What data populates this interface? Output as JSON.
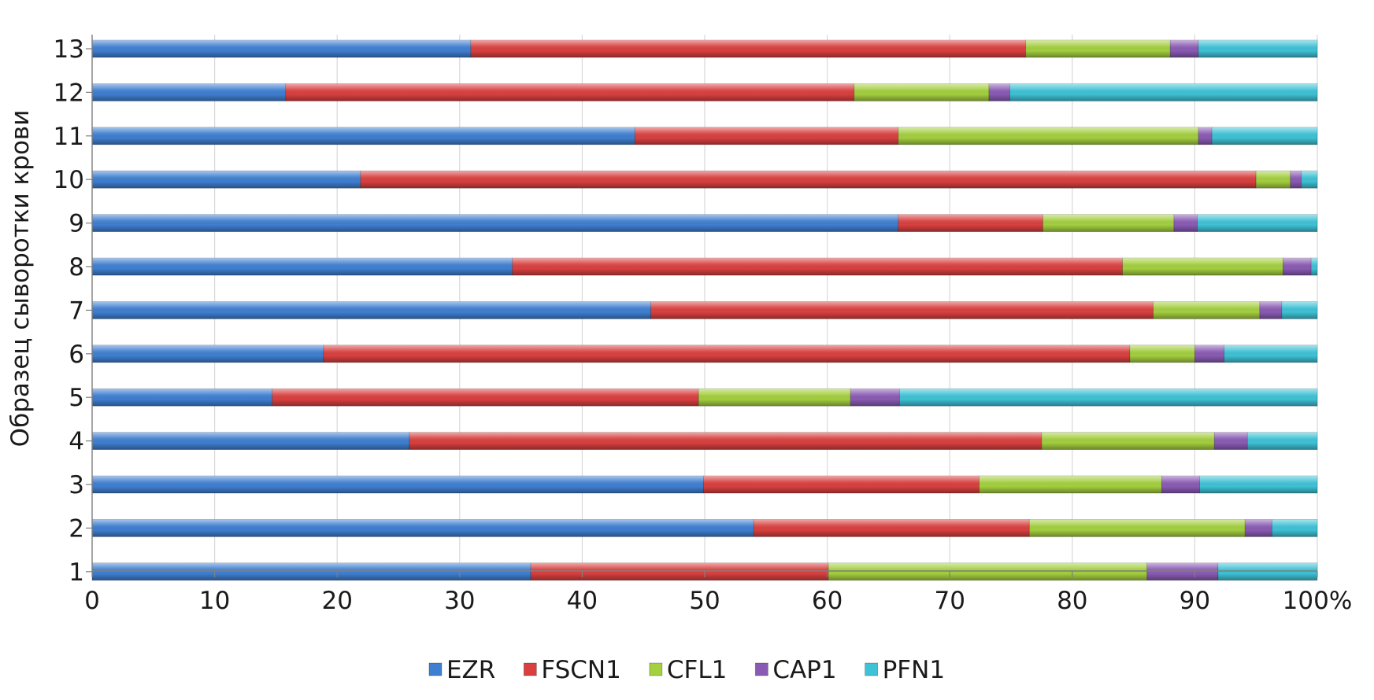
{
  "chart_data": {
    "type": "bar",
    "orientation": "horizontal",
    "stacked": "percent",
    "title": "",
    "xlabel": "",
    "ylabel": "Образец сыворотки крови",
    "xlim": [
      0,
      100
    ],
    "x_ticks": [
      "0",
      "10",
      "20",
      "30",
      "40",
      "50",
      "60",
      "70",
      "80",
      "90",
      "100%"
    ],
    "categories": [
      "1",
      "2",
      "3",
      "4",
      "5",
      "6",
      "7",
      "8",
      "9",
      "10",
      "11",
      "12",
      "13"
    ],
    "series": [
      {
        "name": "EZR",
        "color": "#3f7fd1",
        "values": [
          35.8,
          54.0,
          49.9,
          25.9,
          14.7,
          18.9,
          45.6,
          34.3,
          65.8,
          21.9,
          44.3,
          15.8,
          30.9
        ]
      },
      {
        "name": "FSCN1",
        "color": "#d9403f",
        "values": [
          24.3,
          22.5,
          22.5,
          51.6,
          34.8,
          65.8,
          41.0,
          49.8,
          11.8,
          73.1,
          21.5,
          46.4,
          45.3
        ]
      },
      {
        "name": "CFL1",
        "color": "#a4cf3f",
        "values": [
          26.0,
          17.6,
          14.9,
          14.1,
          12.4,
          5.3,
          8.7,
          13.1,
          10.7,
          2.8,
          24.5,
          11.0,
          11.8
        ]
      },
      {
        "name": "CAP1",
        "color": "#8a5bb4",
        "values": [
          5.8,
          2.2,
          3.1,
          2.7,
          4.0,
          2.4,
          1.8,
          2.3,
          1.9,
          0.9,
          1.1,
          1.7,
          2.3
        ]
      },
      {
        "name": "PFN1",
        "color": "#3ec2d6",
        "values": [
          8.1,
          3.7,
          9.6,
          5.7,
          34.1,
          7.6,
          2.9,
          0.5,
          9.8,
          1.3,
          8.6,
          25.1,
          9.7
        ]
      }
    ],
    "grid": "vertical",
    "legend": "bottom"
  }
}
